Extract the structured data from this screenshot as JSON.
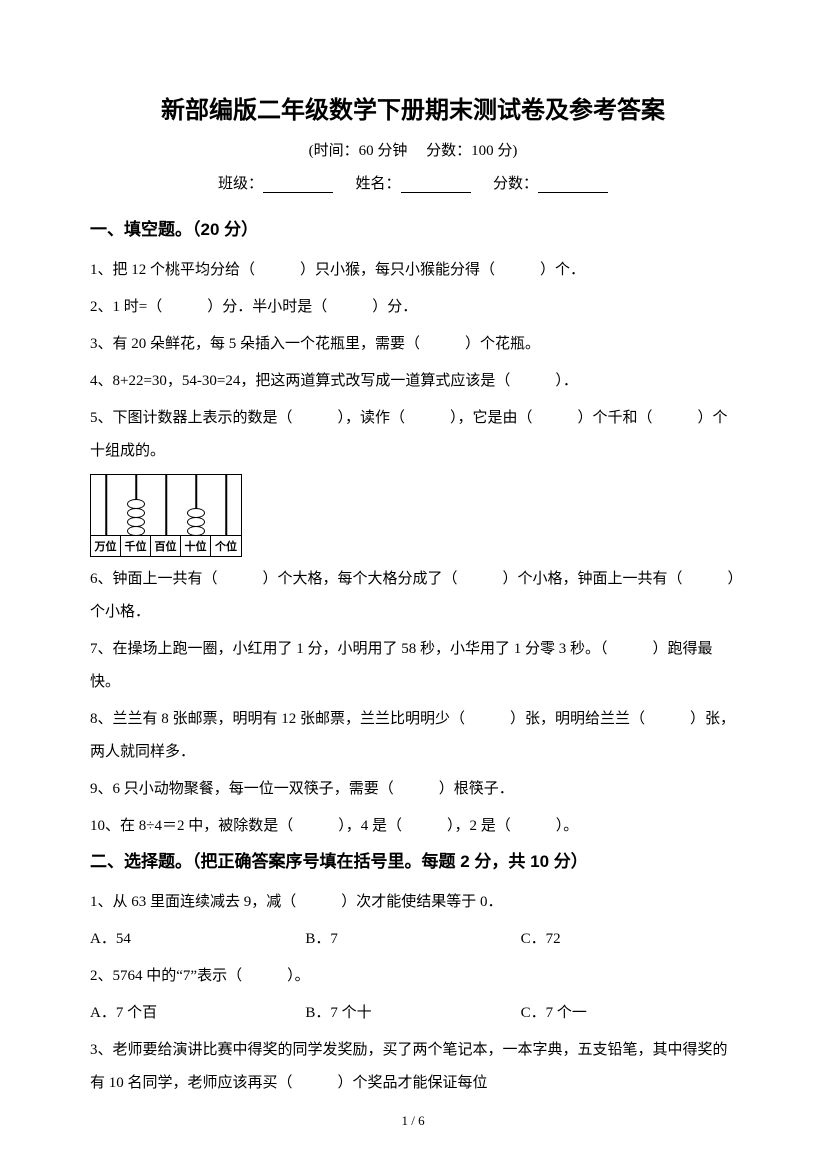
{
  "title": "新部编版二年级数学下册期末测试卷及参考答案",
  "subtitle": "(时间：60 分钟　  分数：100 分)",
  "info": {
    "class_label": "班级：",
    "name_label": "姓名：",
    "score_label": "分数："
  },
  "section1": {
    "heading": "一、填空题。（20 分）",
    "q1": "1、把 12 个桃平均分给（　　　）只小猴，每只小猴能分得（　　　）个．",
    "q2": "2、1 时=（　　　）分．半小时是（　　　）分．",
    "q3": " 3、有 20 朵鲜花，每 5 朵插入一个花瓶里，需要（　　　）个花瓶。",
    "q4": "4、8+22=30，54-30=24，把这两道算式改写成一道算式应该是（　　　）．",
    "q5": "5、下图计数器上表示的数是（　　　），读作（　　　），它是由（　　　）个千和（　　　）个十组成的。",
    "q6": "6、钟面上一共有（　　　）个大格，每个大格分成了（　　　）个小格，钟面上一共有（　　　）个小格．",
    "q7": "7、在操场上跑一圈，小红用了 1 分，小明用了 58 秒，小华用了 1 分零 3 秒。（　　　）跑得最快。",
    "q8": "8、兰兰有 8 张邮票，明明有 12 张邮票，兰兰比明明少（　　　）张，明明给兰兰（　　　）张，两人就同样多．",
    "q9": "9、6 只小动物聚餐，每一位一双筷子，需要（　　　）根筷子．",
    "q10": "10、在 8÷4＝2 中，被除数是（　　　），4 是（　　　），2 是（　　　）。"
  },
  "section2": {
    "heading": "二、选择题。（把正确答案序号填在括号里。每题 2 分，共 10 分）",
    "q1": "1、从 63 里面连续减去 9，减（　　　）次才能使结果等于 0．",
    "q1_opts": {
      "a": "A．54",
      "b": "B．7",
      "c": "C．72"
    },
    "q2": "2、5764 中的“7”表示（　　　）。",
    "q2_opts": {
      "a": "A．7 个百",
      "b": "B．7 个十",
      "c": "C．7 个一"
    },
    "q3": "3、老师要给演讲比赛中得奖的同学发奖励，买了两个笔记本，一本字典，五支铅笔，其中得奖的有 10 名同学，老师应该再买（　　　）个奖品才能保证每位"
  },
  "abacus": {
    "labels": [
      "万位",
      "千位",
      "百位",
      "十位",
      "个位"
    ],
    "beads": [
      0,
      4,
      0,
      3,
      0
    ]
  },
  "page": {
    "current": "1",
    "total": "6"
  }
}
